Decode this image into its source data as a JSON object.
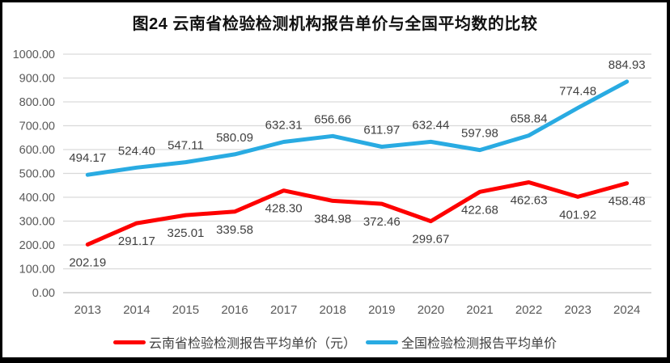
{
  "frame": {
    "border_color": "#000000",
    "panel_background": "#ffffff"
  },
  "chart_data": {
    "type": "line",
    "title": "图24 云南省检验检测机构报告单价与全国平均数的比较",
    "categories": [
      "2013",
      "2014",
      "2015",
      "2016",
      "2017",
      "2018",
      "2019",
      "2020",
      "2021",
      "2022",
      "2023",
      "2024"
    ],
    "series": [
      {
        "name": "云南省检验检测报告平均单价（元）",
        "color": "#fe0000",
        "values": [
          202.19,
          291.17,
          325.01,
          339.58,
          428.3,
          384.98,
          372.46,
          299.67,
          422.68,
          462.63,
          401.92,
          458.48
        ],
        "label_position": "below"
      },
      {
        "name": "全国检验检测报告平均单价",
        "color": "#29abe2",
        "values": [
          494.17,
          524.4,
          547.11,
          580.09,
          632.31,
          656.66,
          611.97,
          632.44,
          597.98,
          658.84,
          774.48,
          884.93
        ],
        "label_position": "above"
      }
    ],
    "xlabel": "",
    "ylabel": "",
    "ylim": [
      0,
      1000
    ],
    "ytick_step": 100,
    "ytick_labels": [
      "0.00",
      "100.00",
      "200.00",
      "300.00",
      "400.00",
      "500.00",
      "600.00",
      "700.00",
      "800.00",
      "900.00",
      "1000.00"
    ],
    "grid": true,
    "legend_position": "bottom"
  },
  "style": {
    "grid_color": "#d9d9d9",
    "axis_line_color": "#bfbfbf",
    "tick_label_color": "#595959",
    "data_label_color": "#404040",
    "line_width": 5
  }
}
